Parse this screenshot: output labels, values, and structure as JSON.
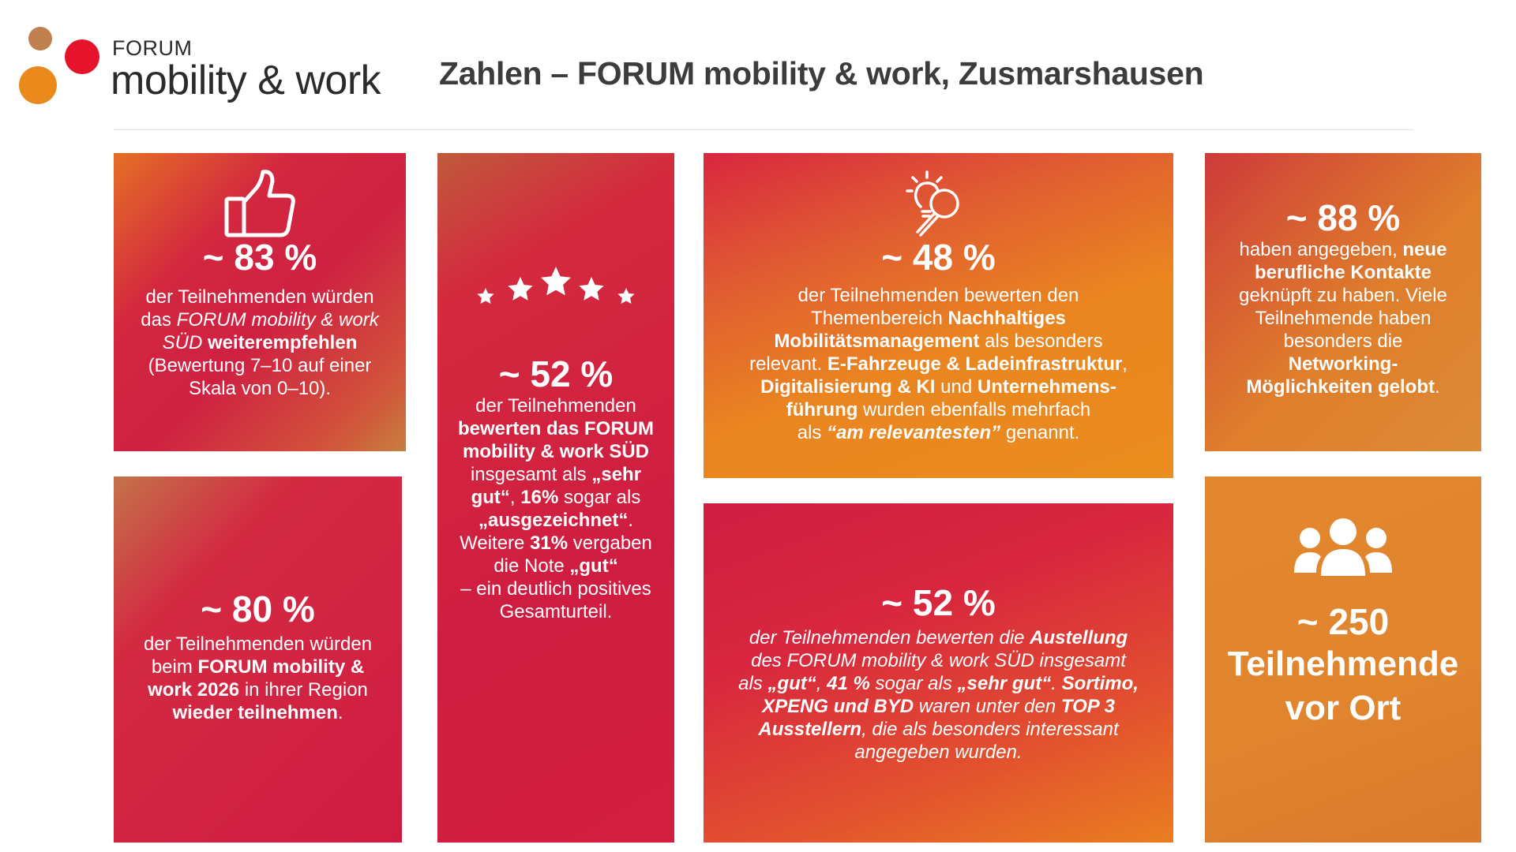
{
  "header": {
    "logo_small": "FORUM",
    "logo_big": "mobility & work",
    "title": "Zahlen – FORUM mobility & work, Zusmarshausen"
  },
  "colors": {
    "red": "#d21f3f",
    "orange": "#ea8520",
    "brown": "#c08050",
    "title_gray": "#3c3c3c"
  },
  "tiles": {
    "t1": {
      "icon": "thumbs-up-icon",
      "stat": "~ 83 %",
      "l1": "der Teilnehmenden würden",
      "l2_a": "das ",
      "l2_b": "FORUM mobility & work",
      "l3_a": "SÜD",
      "l3_b": " weiterempfehlen",
      "l4": "(Bewertung 7–10 auf einer",
      "l5": "Skala von 0–10)."
    },
    "t2": {
      "icon": "five-stars-icon",
      "stat": "~ 52 %",
      "l1": "der Teilnehmenden",
      "l2": "bewerten das FORUM",
      "l3": "mobility & work SÜD",
      "l4_a": "insgesamt als ",
      "l4_b": "„sehr",
      "l5_a": "gut“",
      "l5_b": ", ",
      "l5_c": "16%",
      "l5_d": " sogar als",
      "l6_a": "„ausgezeichnet“",
      "l6_b": ".",
      "l7_a": "Weitere ",
      "l7_b": "31%",
      "l7_c": " vergaben",
      "l8_a": "die Note ",
      "l8_b": "„gut“",
      "l9": "– ein deutlich positives",
      "l10": "Gesamturteil."
    },
    "t3": {
      "icon": "idea-magnifier-icon",
      "stat": "~ 48 %",
      "l1": "der Teilnehmenden bewerten den",
      "l2_a": "Themenbereich ",
      "l2_b": "Nachhaltiges",
      "l3_a": "Mobilitätsmanagement",
      "l3_b": " als besonders",
      "l4_a": "relevant.  ",
      "l4_b": "E-Fahrzeuge & Ladeinfrastruktur",
      "l4_c": ",",
      "l5_a": "Digitalisierung & KI",
      "l5_b": " und ",
      "l5_c": "Unternehmens-",
      "l6_a": "führung",
      "l6_b": " wurden ebenfalls mehrfach",
      "l7_a": "als ",
      "l7_b": "“am relevantesten”",
      "l7_c": " genannt."
    },
    "t4": {
      "stat": "~ 88 %",
      "l1_a": "haben angegeben, ",
      "l1_b": "neue",
      "l2": "berufliche Kontakte",
      "l3": "geknüpft zu haben. Viele",
      "l4": "Teilnehmende haben",
      "l5": "besonders die",
      "l6": "Networking-",
      "l7_a": "Möglichkeiten gelobt",
      "l7_b": "."
    },
    "t5": {
      "stat": "~ 80 %",
      "l1": "der Teilnehmenden würden",
      "l2_a": "beim ",
      "l2_b": "FORUM mobility &",
      "l3_a": "work 2026",
      "l3_b": " in ihrer Region",
      "l4_a": "wieder teilnehmen",
      "l4_b": "."
    },
    "t6": {
      "stat": "~ 52 %",
      "l1_a": "der Teilnehmenden bewerten die ",
      "l1_b": "Austellung",
      "l2": "des FORUM mobility & work SÜD insgesamt",
      "l3_a": "als ",
      "l3_b": "„gut“",
      "l3_c": ", ",
      "l3_d": "41 %",
      "l3_e": " sogar als ",
      "l3_f": "„sehr gut“",
      "l3_g": ". ",
      "l3_h": "Sortimo,",
      "l4_a": "XPENG und BYD",
      "l4_b": " waren unter den ",
      "l4_c": "TOP 3",
      "l5_a": "Ausstellern",
      "l5_b": ", die als besonders interessant",
      "l6": "angegeben wurden."
    },
    "t7": {
      "icon": "people-group-icon",
      "stat": "~ 250",
      "l1": "Teilnehmende",
      "l2": "vor Ort"
    }
  }
}
